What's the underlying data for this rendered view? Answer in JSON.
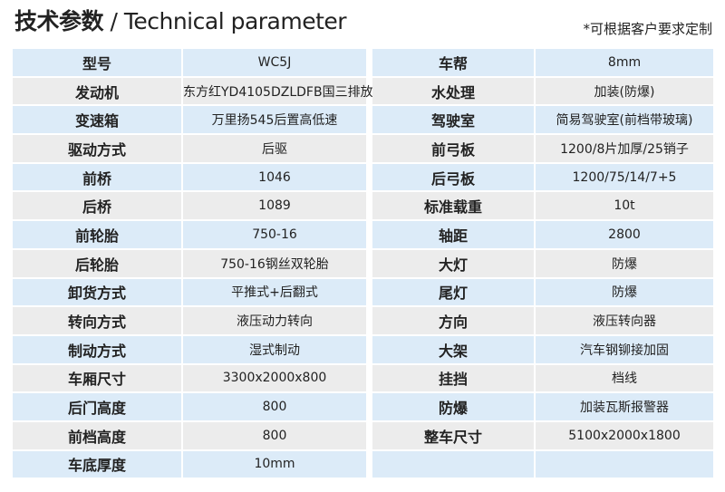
{
  "header": {
    "title_cn": "技术参数",
    "title_sep": " / ",
    "title_en": "Technical parameter",
    "note": "*可根据客户要求定制"
  },
  "left": [
    {
      "k": "型号",
      "v": "WC5J"
    },
    {
      "k": "发动机",
      "v": "东方红YD4105DZLDFB国三排放"
    },
    {
      "k": "变速箱",
      "v": "万里扬545后置高低速"
    },
    {
      "k": "驱动方式",
      "v": "后驱"
    },
    {
      "k": "前桥",
      "v": "1046"
    },
    {
      "k": "后桥",
      "v": "1089"
    },
    {
      "k": "前轮胎",
      "v": "750-16"
    },
    {
      "k": "后轮胎",
      "v": "750-16钢丝双轮胎"
    },
    {
      "k": "卸货方式",
      "v": "平推式+后翻式"
    },
    {
      "k": "转向方式",
      "v": "液压动力转向"
    },
    {
      "k": "制动方式",
      "v": "湿式制动"
    },
    {
      "k": "车厢尺寸",
      "v": "3300x2000x800"
    },
    {
      "k": "后门高度",
      "v": "800"
    },
    {
      "k": "前档高度",
      "v": "800"
    },
    {
      "k": "车底厚度",
      "v": "10mm"
    }
  ],
  "right": [
    {
      "k": "车帮",
      "v": "8mm"
    },
    {
      "k": "水处理",
      "v": "加装(防爆)"
    },
    {
      "k": "驾驶室",
      "v": "简易驾驶室(前档带玻璃)"
    },
    {
      "k": "前弓板",
      "v": "1200/8片加厚/25销子"
    },
    {
      "k": "后弓板",
      "v": "1200/75/14/7+5"
    },
    {
      "k": "标准载重",
      "v": "10t"
    },
    {
      "k": "轴距",
      "v": "2800"
    },
    {
      "k": "大灯",
      "v": "防爆"
    },
    {
      "k": "尾灯",
      "v": "防爆"
    },
    {
      "k": "方向",
      "v": "液压转向器"
    },
    {
      "k": "大架",
      "v": "汽车钢铆接加固"
    },
    {
      "k": "挂挡",
      "v": "档线"
    },
    {
      "k": "防爆",
      "v": "加装瓦斯报警器"
    },
    {
      "k": "整车尺寸",
      "v": "5100x2000x1800"
    },
    {
      "k": "",
      "v": ""
    }
  ],
  "colors": {
    "row_blue": "#dcebf8",
    "row_gray": "#ececec"
  }
}
